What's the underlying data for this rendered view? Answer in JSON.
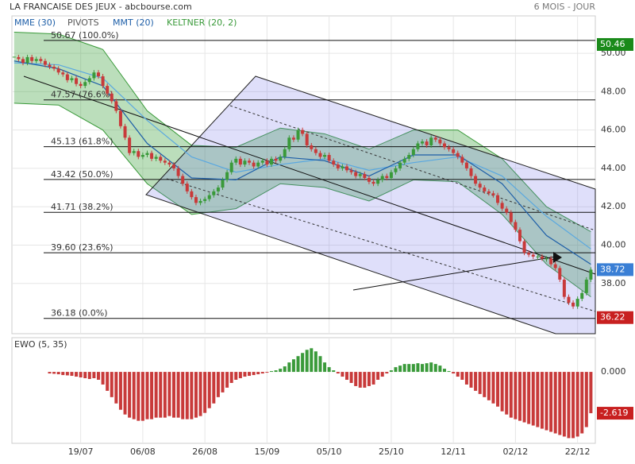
{
  "chart_data": [
    {
      "type": "candlestick",
      "title": "LA FRANCAISE DES JEUX - abcbourse.com",
      "subtitle": "6 MOIS - JOUR",
      "xlim": [
        -0.5,
        131
      ],
      "xticks": [
        {
          "value": 15,
          "label": "19/07"
        },
        {
          "value": 29,
          "label": "06/08"
        },
        {
          "value": 43,
          "label": "26/08"
        },
        {
          "value": 57,
          "label": "15/09"
        },
        {
          "value": 71,
          "label": "05/10"
        },
        {
          "value": 85,
          "label": "25/10"
        },
        {
          "value": 99,
          "label": "12/11"
        },
        {
          "value": 113,
          "label": "02/12"
        },
        {
          "value": 127,
          "label": "22/12"
        }
      ],
      "ylim": [
        35.38,
        51.95
      ],
      "yticks": [
        {
          "value": 50,
          "label": "50.00"
        },
        {
          "value": 48,
          "label": "48.00"
        },
        {
          "value": 46,
          "label": "46.00"
        },
        {
          "value": 44,
          "label": "44.00"
        },
        {
          "value": 42,
          "label": "42.00"
        },
        {
          "value": 40,
          "label": "40.00"
        },
        {
          "value": 38,
          "label": "38.00"
        }
      ],
      "up_color": "#3a9a3a",
      "down_color": "#c83a3a",
      "close": [
        49.8,
        49.7,
        49.5,
        49.8,
        49.6,
        49.7,
        49.6,
        49.4,
        49.3,
        49.2,
        49.0,
        48.9,
        48.6,
        48.7,
        48.4,
        48.3,
        48.5,
        48.7,
        49.0,
        48.8,
        48.3,
        47.9,
        47.5,
        47.0,
        46.2,
        45.6,
        44.8,
        44.9,
        44.6,
        44.7,
        44.8,
        44.5,
        44.6,
        44.4,
        44.3,
        44.2,
        44.0,
        43.6,
        43.2,
        42.8,
        42.5,
        42.2,
        42.3,
        42.4,
        42.6,
        42.8,
        43.0,
        43.4,
        43.8,
        44.3,
        44.5,
        44.2,
        44.4,
        44.3,
        44.1,
        44.3,
        44.4,
        44.2,
        44.5,
        44.4,
        44.6,
        45.0,
        45.6,
        45.5,
        46.0,
        45.8,
        45.2,
        45.0,
        44.8,
        44.6,
        44.7,
        44.4,
        44.2,
        44.0,
        44.1,
        43.9,
        43.8,
        43.6,
        43.7,
        43.5,
        43.3,
        43.2,
        43.4,
        43.6,
        43.5,
        43.8,
        44.0,
        44.3,
        44.5,
        44.7,
        45.0,
        45.3,
        45.4,
        45.2,
        45.6,
        45.5,
        45.3,
        45.1,
        45.0,
        44.8,
        44.6,
        44.3,
        44.0,
        43.6,
        43.2,
        43.0,
        42.8,
        42.7,
        42.6,
        42.2,
        41.9,
        41.7,
        41.2,
        40.8,
        40.2,
        39.6,
        39.5,
        39.4,
        39.4,
        39.3,
        39.3,
        39.0,
        38.8,
        38.2,
        37.3,
        37.0,
        36.8,
        37.2,
        37.5,
        38.2,
        38.72
      ],
      "series": [
        {
          "name": "MME (30)",
          "color": "#5aa8e0",
          "x": [
            0,
            10,
            20,
            30,
            40,
            50,
            60,
            70,
            80,
            90,
            100,
            110,
            120,
            130
          ],
          "values": [
            49.5,
            49.4,
            48.7,
            46.5,
            44.6,
            43.8,
            44.2,
            44.5,
            43.9,
            44.3,
            44.6,
            43.6,
            41.5,
            39.8
          ]
        },
        {
          "name": "MMT (20)",
          "color": "#1e5fa8",
          "x": [
            0,
            10,
            20,
            30,
            40,
            50,
            60,
            70,
            80,
            90,
            100,
            110,
            120,
            130
          ],
          "values": [
            49.6,
            49.2,
            48.3,
            45.3,
            43.5,
            43.4,
            44.6,
            44.4,
            43.6,
            44.7,
            44.7,
            43.2,
            40.5,
            39.0
          ]
        }
      ],
      "keltner": {
        "name": "KELTNER (20, 2)",
        "color": "#3a9a3a",
        "x": [
          0,
          10,
          20,
          30,
          40,
          50,
          60,
          70,
          80,
          90,
          100,
          110,
          120,
          130
        ],
        "upper": [
          51.1,
          51.0,
          50.2,
          47.0,
          45.2,
          45.1,
          46.1,
          45.8,
          45.0,
          46.0,
          46.0,
          44.5,
          42.0,
          40.7
        ],
        "lower": [
          47.4,
          47.3,
          46.0,
          43.2,
          41.6,
          41.9,
          43.2,
          43.0,
          42.3,
          43.4,
          43.3,
          41.6,
          39.0,
          37.3
        ]
      },
      "pivots": {
        "name": "PIVOTS",
        "levels": [
          {
            "value": 50.67,
            "label": "50.67 (100.0%)"
          },
          {
            "value": 47.57,
            "label": "47.57 (76.6%)"
          },
          {
            "value": 45.13,
            "label": "45.13 (61.8%)"
          },
          {
            "value": 43.42,
            "label": "43.42 (50.0%)"
          },
          {
            "value": 41.71,
            "label": "41.71 (38.2%)"
          },
          {
            "value": 39.6,
            "label": "39.60 (23.6%)"
          },
          {
            "value": 36.18,
            "label": "36.18 (0.0%)"
          }
        ]
      },
      "markers": [
        {
          "value": 50.46,
          "color": "#1a8a1a"
        },
        {
          "value": 38.72,
          "color": "#3a7fd5"
        },
        {
          "value": 36.22,
          "color": "#c82020"
        }
      ]
    },
    {
      "type": "bar",
      "title": "EWO (5, 35)",
      "ylim": [
        -4.53,
        2.17
      ],
      "yticks": [
        {
          "value": 0,
          "label": "0.000"
        }
      ],
      "up_color": "#3a9a3a",
      "down_color": "#c83a3a",
      "values": [
        null,
        null,
        null,
        null,
        null,
        null,
        null,
        null,
        -0.1,
        -0.12,
        -0.15,
        -0.2,
        -0.22,
        -0.25,
        -0.3,
        -0.35,
        -0.4,
        -0.45,
        -0.4,
        -0.5,
        -0.8,
        -1.2,
        -1.6,
        -2.0,
        -2.4,
        -2.7,
        -2.9,
        -3.0,
        -3.1,
        -3.1,
        -3.0,
        -3.0,
        -2.9,
        -2.9,
        -2.9,
        -2.8,
        -2.9,
        -2.9,
        -3.0,
        -3.0,
        -3.0,
        -2.9,
        -2.8,
        -2.6,
        -2.3,
        -2.0,
        -1.6,
        -1.3,
        -1.0,
        -0.7,
        -0.5,
        -0.4,
        -0.3,
        -0.25,
        -0.2,
        -0.15,
        -0.1,
        -0.05,
        0.05,
        0.1,
        0.2,
        0.35,
        0.6,
        0.8,
        1.0,
        1.2,
        1.4,
        1.5,
        1.3,
        1.0,
        0.6,
        0.3,
        0.1,
        -0.1,
        -0.3,
        -0.5,
        -0.7,
        -0.9,
        -1.0,
        -1.0,
        -0.9,
        -0.8,
        -0.5,
        -0.3,
        -0.1,
        0.1,
        0.3,
        0.4,
        0.5,
        0.5,
        0.5,
        0.55,
        0.5,
        0.55,
        0.6,
        0.5,
        0.4,
        0.2,
        0.05,
        -0.1,
        -0.3,
        -0.5,
        -0.8,
        -1.0,
        -1.2,
        -1.4,
        -1.6,
        -1.8,
        -2.0,
        -2.2,
        -2.5,
        -2.7,
        -2.9,
        -3.0,
        -3.1,
        -3.2,
        -3.3,
        -3.4,
        -3.5,
        -3.6,
        -3.7,
        -3.8,
        -3.9,
        -4.0,
        -4.1,
        -4.2,
        -4.2,
        -4.1,
        -3.9,
        -3.5,
        -2.619
      ],
      "last": {
        "value": -2.619,
        "color": "#c82020"
      }
    }
  ]
}
